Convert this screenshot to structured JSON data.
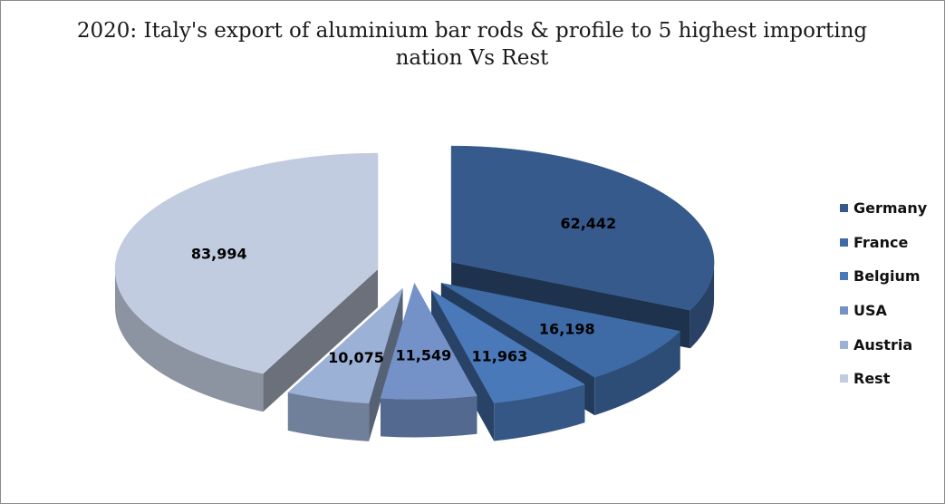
{
  "chart_data": {
    "type": "pie",
    "title": "2020: Italy's export of aluminium bar rods & profile to 5 highest importing nation Vs Rest",
    "categories": [
      "Germany",
      "France",
      "Belgium",
      "USA",
      "Austria",
      "Rest"
    ],
    "values": [
      62442,
      16198,
      11963,
      11549,
      10075,
      83994
    ],
    "value_labels": [
      "62,442",
      "16,198",
      "11,963",
      "11,549",
      "10,075",
      "83,994"
    ],
    "exploded": true,
    "style": "3d",
    "legend_position": "right"
  },
  "colors": {
    "Germany": "#375A8C",
    "France": "#3E6BA5",
    "Belgium": "#4A79BA",
    "USA": "#7592C8",
    "Austria": "#9CB1D6",
    "Rest": "#C2CCE0"
  }
}
